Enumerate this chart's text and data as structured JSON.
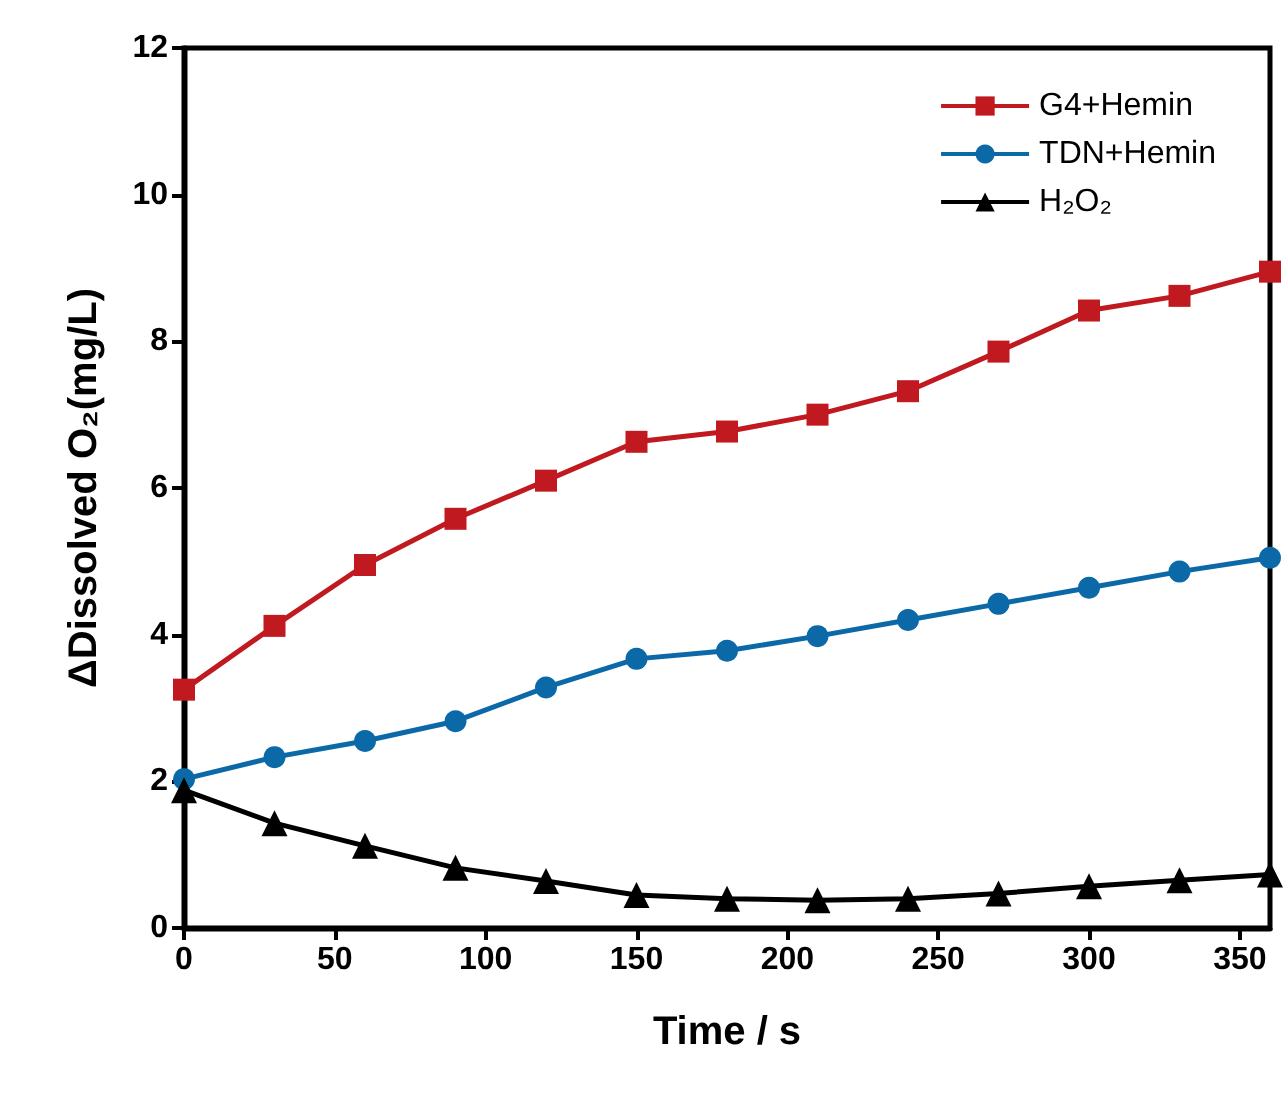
{
  "chart_data": {
    "type": "line",
    "xlabel": "Time / s",
    "ylabel": "ΔDissolved O₂(mg/L)",
    "x": [
      0,
      30,
      60,
      90,
      120,
      150,
      180,
      210,
      240,
      270,
      300,
      330,
      360
    ],
    "xlim": [
      0,
      360
    ],
    "xticks": [
      0,
      50,
      100,
      150,
      200,
      250,
      300,
      350
    ],
    "ylim": [
      0,
      12
    ],
    "yticks": [
      0,
      2,
      4,
      6,
      8,
      10,
      12
    ],
    "grid": false,
    "legend": "top right",
    "line_style": "solid",
    "series": [
      {
        "name": "G4+Hemin",
        "color": "#c0191f",
        "marker": "square",
        "values": [
          3.25,
          4.12,
          4.95,
          5.58,
          6.1,
          6.63,
          6.77,
          7.0,
          7.32,
          7.86,
          8.42,
          8.62,
          8.95
        ]
      },
      {
        "name": "TDN+Hemin",
        "color": "#0b69a8",
        "marker": "circle",
        "values": [
          2.03,
          2.33,
          2.55,
          2.82,
          3.28,
          3.67,
          3.78,
          3.98,
          4.2,
          4.42,
          4.64,
          4.86,
          5.05
        ]
      },
      {
        "name": "H₂O₂",
        "color": "#000000",
        "marker": "triangle",
        "values": [
          1.88,
          1.43,
          1.12,
          0.82,
          0.64,
          0.45,
          0.4,
          0.38,
          0.4,
          0.47,
          0.57,
          0.65,
          0.73
        ]
      }
    ]
  }
}
